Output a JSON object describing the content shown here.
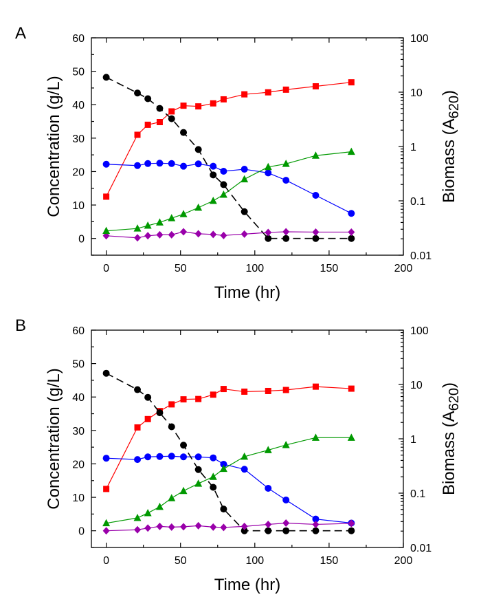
{
  "chart_data": [
    {
      "panel": "A",
      "type": "line",
      "xlabel": "Time (hr)",
      "ylabel": "Concentration (g/L)",
      "y2label": "Biomass (A620)",
      "y2label_main": "Biomass (A",
      "y2label_sub": "620",
      "y2label_close": ")",
      "xlim": [
        -10,
        200
      ],
      "xticks": [
        0,
        50,
        100,
        150,
        200
      ],
      "ylim": [
        -5,
        60
      ],
      "yticks": [
        0,
        10,
        20,
        30,
        40,
        50,
        60
      ],
      "y2lim": [
        0.01,
        100
      ],
      "y2scale": "log",
      "y2ticks": [
        0.01,
        0.1,
        1,
        10,
        100
      ],
      "grid": false,
      "series": [
        {
          "axis": "left",
          "color": "#ff0000",
          "marker": "square",
          "line": "solid",
          "x": [
            0,
            21,
            28,
            36,
            44,
            52,
            62,
            72,
            79,
            93,
            109,
            121,
            141,
            165
          ],
          "y": [
            12.5,
            31,
            34,
            34.8,
            38,
            39.7,
            39.5,
            40.4,
            41.6,
            43.1,
            43.7,
            44.5,
            45.5,
            46.7
          ]
        },
        {
          "axis": "left",
          "color": "#0000ff",
          "marker": "circle",
          "line": "solid",
          "x": [
            0,
            21,
            28,
            36,
            44,
            52,
            62,
            72,
            79,
            93,
            109,
            121,
            141,
            165
          ],
          "y": [
            22.2,
            21.8,
            22.4,
            22.5,
            22.4,
            21.6,
            22.3,
            21.6,
            20.1,
            20.7,
            19.6,
            17.4,
            12.9,
            7.5
          ]
        },
        {
          "axis": "left",
          "color": "#000000",
          "marker": "circle",
          "line": "dashed",
          "x": [
            0,
            21,
            28,
            36,
            44,
            52,
            62,
            72,
            79,
            93,
            109,
            121,
            141,
            165
          ],
          "y": [
            48.2,
            43.5,
            41.8,
            38.9,
            35.8,
            31.7,
            26.6,
            19,
            16.1,
            8,
            0,
            0,
            0,
            0
          ]
        },
        {
          "axis": "left",
          "color": "#9900aa",
          "marker": "diamond",
          "line": "solid",
          "x": [
            0,
            21,
            28,
            36,
            44,
            52,
            62,
            72,
            79,
            93,
            109,
            121,
            141,
            165
          ],
          "y": [
            0.8,
            0.2,
            0.8,
            1.1,
            1.1,
            2,
            1.4,
            1.2,
            0.9,
            1.3,
            1.8,
            2,
            1.9,
            1.9
          ]
        },
        {
          "axis": "right",
          "color": "#009900",
          "marker": "triangle",
          "line": "solid",
          "x": [
            0,
            21,
            28,
            36,
            44,
            52,
            62,
            72,
            79,
            93,
            109,
            121,
            141,
            165
          ],
          "y": [
            0.028,
            0.031,
            0.035,
            0.04,
            0.048,
            0.057,
            0.075,
            0.1,
            0.13,
            0.25,
            0.42,
            0.48,
            0.68,
            0.8
          ]
        }
      ]
    },
    {
      "panel": "B",
      "type": "line",
      "xlabel": "Time (hr)",
      "ylabel": "Concentration (g/L)",
      "y2label": "Biomass (A620)",
      "y2label_main": "Biomass (A",
      "y2label_sub": "620",
      "y2label_close": ")",
      "xlim": [
        -10,
        200
      ],
      "xticks": [
        0,
        50,
        100,
        150,
        200
      ],
      "ylim": [
        -5,
        60
      ],
      "yticks": [
        0,
        10,
        20,
        30,
        40,
        50,
        60
      ],
      "y2lim": [
        0.01,
        100
      ],
      "y2scale": "log",
      "y2ticks": [
        0.01,
        0.1,
        1,
        10,
        100
      ],
      "grid": false,
      "series": [
        {
          "axis": "left",
          "color": "#ff0000",
          "marker": "square",
          "line": "solid",
          "x": [
            0,
            21,
            28,
            36,
            44,
            52,
            62,
            72,
            79,
            93,
            109,
            121,
            141,
            165
          ],
          "y": [
            12.5,
            30.9,
            33.4,
            35.8,
            37.8,
            39.3,
            39.4,
            40.7,
            42.4,
            41.6,
            41.8,
            42.1,
            43.1,
            42.5
          ]
        },
        {
          "axis": "left",
          "color": "#0000ff",
          "marker": "circle",
          "line": "solid",
          "x": [
            0,
            21,
            28,
            36,
            44,
            52,
            62,
            72,
            79,
            93,
            109,
            121,
            141,
            165
          ],
          "y": [
            21.7,
            21.3,
            22.1,
            22.2,
            22.3,
            22.1,
            22.1,
            21.8,
            19.9,
            18.4,
            12.7,
            9.2,
            3.5,
            2.3
          ]
        },
        {
          "axis": "left",
          "color": "#000000",
          "marker": "circle",
          "line": "dashed",
          "x": [
            0,
            21,
            28,
            36,
            44,
            52,
            62,
            72,
            79,
            93,
            109,
            121,
            141,
            165
          ],
          "y": [
            47.1,
            42.2,
            39.9,
            35.3,
            31.1,
            25.6,
            18.3,
            13,
            6.5,
            0,
            0,
            0,
            0,
            0
          ]
        },
        {
          "axis": "left",
          "color": "#9900aa",
          "marker": "diamond",
          "line": "solid",
          "x": [
            0,
            21,
            28,
            36,
            44,
            52,
            62,
            72,
            79,
            93,
            109,
            121,
            141,
            165
          ],
          "y": [
            0,
            0.3,
            0.8,
            1.3,
            1.1,
            1.2,
            1.5,
            1.1,
            1,
            1.3,
            1.9,
            2.3,
            1.9,
            2.2
          ]
        },
        {
          "axis": "right",
          "color": "#009900",
          "marker": "triangle",
          "line": "solid",
          "x": [
            0,
            21,
            28,
            36,
            44,
            52,
            62,
            72,
            79,
            93,
            109,
            121,
            141,
            165
          ],
          "y": [
            0.028,
            0.035,
            0.043,
            0.056,
            0.081,
            0.11,
            0.15,
            0.2,
            0.28,
            0.47,
            0.62,
            0.77,
            1.05,
            1.05
          ]
        }
      ]
    }
  ]
}
